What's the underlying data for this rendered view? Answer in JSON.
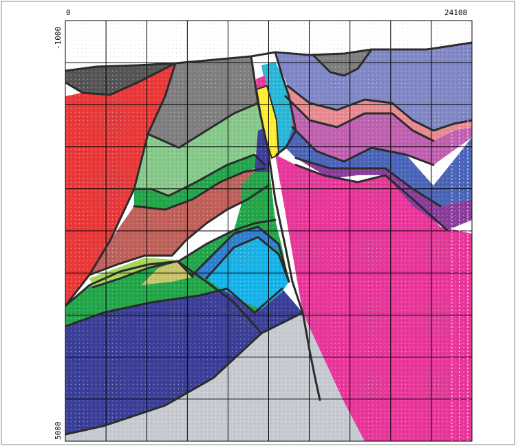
{
  "axes": {
    "x_start_label": "0",
    "x_end_label": "24108",
    "y_top_label": "-1000",
    "y_bottom_label": "5000"
  },
  "colors": {
    "background": "#ffffff",
    "grid": "#000000",
    "boundary": "#2b2b2b",
    "red_unit": "#e8393a",
    "dark_gray_unit": "#555555",
    "gray_unit": "#7f7f7f",
    "light_green_unit": "#86c98a",
    "brown_red_unit": "#c0605a",
    "green_unit": "#23a54a",
    "lime_unit": "#a8d65a",
    "olive_yellow_unit": "#c8c46a",
    "mid_blue_unit": "#2f7fd0",
    "cyan_unit": "#17b2e8",
    "navy_unit": "#3b3f97",
    "light_gray_unit": "#c7cbd1",
    "magenta_unit": "#e8379a",
    "periwinkle_unit": "#8088c6",
    "pink_unit": "#e88a90",
    "orchid_unit": "#c060b0",
    "blue_unit": "#4a64b8",
    "purple_unit": "#8a3c9a",
    "yellow_unit": "#ffee33",
    "teal_unit": "#2bb6d8"
  }
}
